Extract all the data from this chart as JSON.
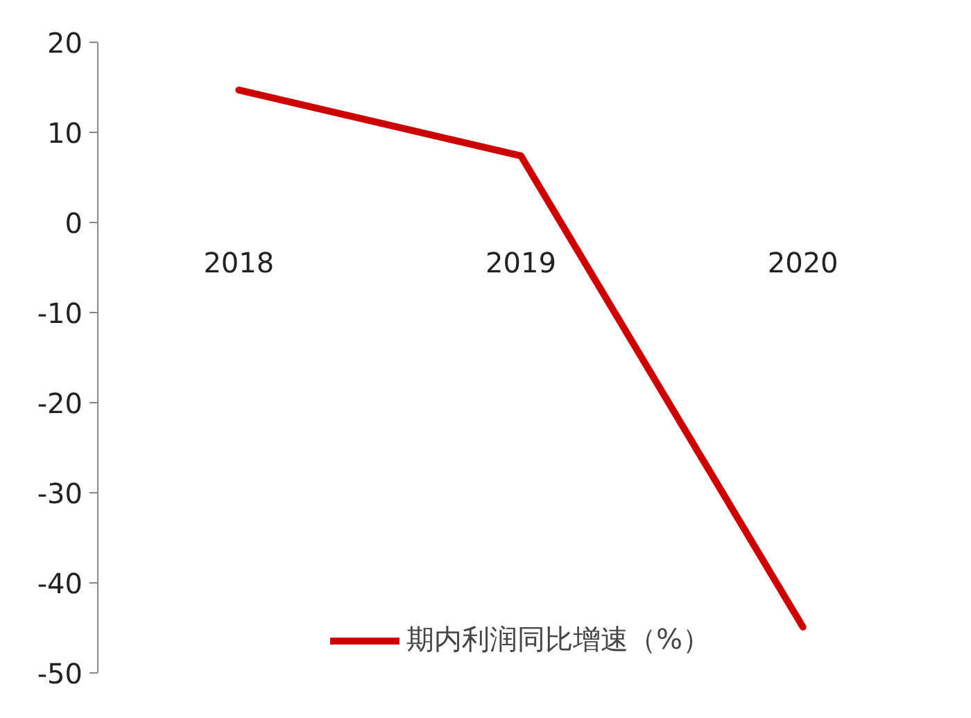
{
  "chart_data": {
    "type": "line",
    "categories": [
      "2018",
      "2019",
      "2020"
    ],
    "series": [
      {
        "name": "期内利润同比增速（%）",
        "color": "#cc0000",
        "values": [
          14.7,
          7.4,
          -44.9
        ]
      }
    ],
    "ylim": [
      -50,
      20
    ],
    "yticks": [
      -50,
      -40,
      -30,
      -20,
      -10,
      0,
      10,
      20
    ],
    "grid": false,
    "legend": "bottom",
    "marker": "none",
    "line_style": "solid"
  }
}
